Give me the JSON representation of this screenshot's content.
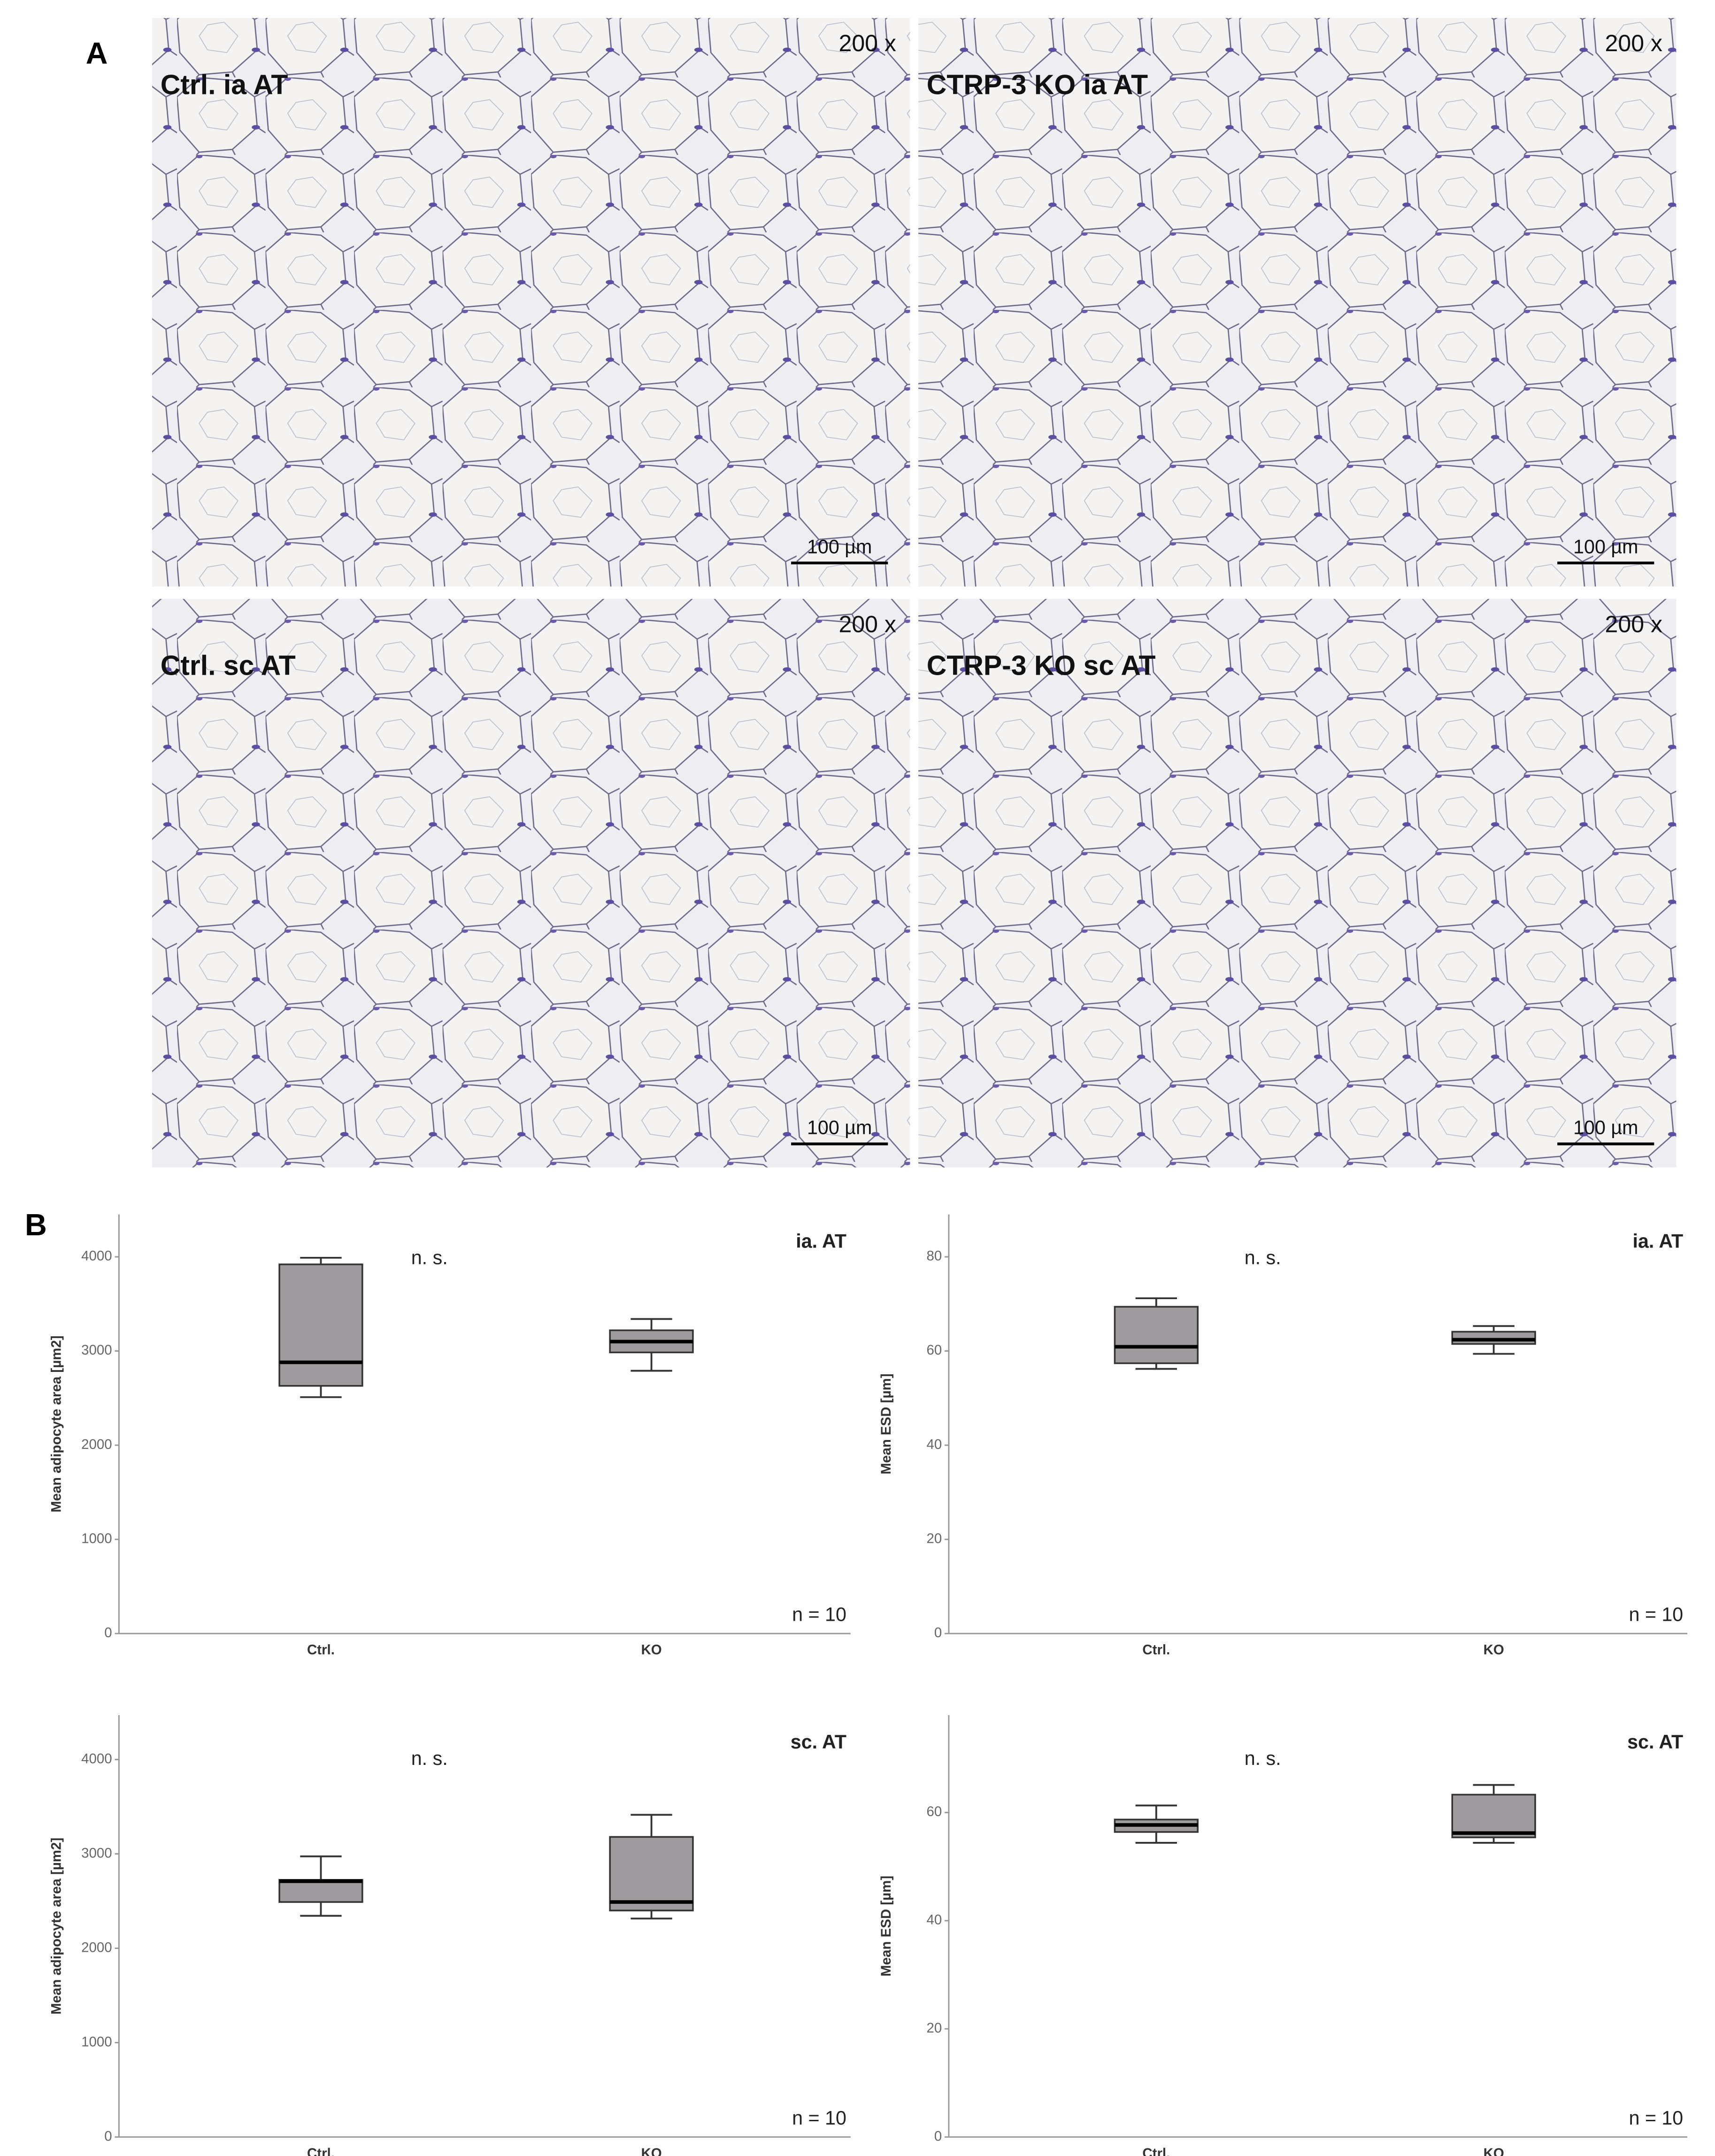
{
  "panel_a": {
    "label": "A",
    "images": [
      {
        "title": "Ctrl. ia AT",
        "magnification": "200 x",
        "scale_bar": "100 µm"
      },
      {
        "title": "CTRP-3 KO ia AT",
        "magnification": "200 x",
        "scale_bar": "100 µm"
      },
      {
        "title": "Ctrl. sc AT",
        "magnification": "200 x",
        "scale_bar": "100 µm"
      },
      {
        "title": "CTRP-3 KO sc AT",
        "magnification": "200 x",
        "scale_bar": "100 µm"
      }
    ]
  },
  "panel_b": {
    "label": "B"
  },
  "chart_data": [
    {
      "type": "box",
      "title": "ia. AT",
      "annotation": "n. s.",
      "note": "n = 10",
      "y_label": "Mean adipocyte area [µm2]",
      "categories": [
        "Ctrl.",
        "KO"
      ],
      "color": "#9f9a9d",
      "boxes": [
        {
          "low": 2510,
          "q1": 2630,
          "median": 2880,
          "q3": 3920,
          "high": 3990
        },
        {
          "low": 2790,
          "q1": 2985,
          "median": 3100,
          "q3": 3220,
          "high": 3340
        }
      ],
      "ylim": [
        0,
        4450
      ],
      "yticks": [
        0,
        1000,
        2000,
        3000,
        4000
      ]
    },
    {
      "type": "box",
      "title": "ia. AT",
      "annotation": "n. s.",
      "note": "n = 10",
      "y_label": "Mean ESD [µm]",
      "categories": [
        "Ctrl.",
        "KO"
      ],
      "color": "#9f9a9d",
      "boxes": [
        {
          "low": 56.2,
          "q1": 57.4,
          "median": 60.9,
          "q3": 69.4,
          "high": 71.2
        },
        {
          "low": 59.4,
          "q1": 61.5,
          "median": 62.4,
          "q3": 64.1,
          "high": 65.3
        }
      ],
      "ylim": [
        0,
        89
      ],
      "yticks": [
        0,
        20,
        40,
        60,
        80
      ]
    },
    {
      "type": "box",
      "title": "sc. AT",
      "annotation": "n. s.",
      "note": "n = 10",
      "y_label": "Mean adipocyte area [µm2]",
      "categories": [
        "Ctrl.",
        "KO"
      ],
      "color": "#9f9a9d",
      "boxes": [
        {
          "low": 2344,
          "q1": 2490,
          "median": 2710,
          "q3": 2725,
          "high": 2974
        },
        {
          "low": 2315,
          "q1": 2400,
          "median": 2490,
          "q3": 3180,
          "high": 3414
        }
      ],
      "ylim": [
        0,
        4470
      ],
      "yticks": [
        0,
        1000,
        2000,
        3000,
        4000
      ]
    },
    {
      "type": "box",
      "title": "sc. AT",
      "annotation": "n. s.",
      "note": "n = 10",
      "y_label": "Mean ESD [µm]",
      "categories": [
        "Ctrl.",
        "KO"
      ],
      "color": "#9f9a9d",
      "boxes": [
        {
          "low": 54.4,
          "q1": 56.4,
          "median": 57.7,
          "q3": 58.7,
          "high": 61.3
        },
        {
          "low": 54.4,
          "q1": 55.4,
          "median": 56.2,
          "q3": 63.3,
          "high": 65.1
        }
      ],
      "ylim": [
        0,
        78
      ],
      "yticks": [
        0,
        20,
        40,
        60
      ]
    }
  ]
}
